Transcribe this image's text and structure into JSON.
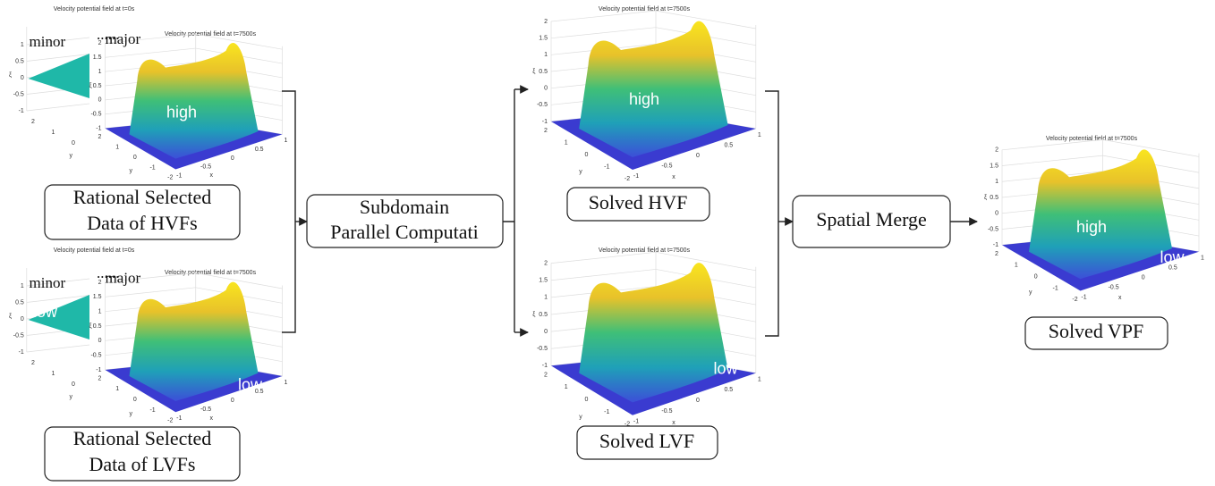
{
  "plots": [
    {
      "title": "Velocity potential field at t=0s",
      "tag": "minor",
      "surface_labels": [],
      "zticks": [
        1,
        0.5,
        0,
        -0.5,
        -1
      ],
      "yticks": [
        2,
        1,
        0
      ],
      "xticks": [],
      "z_label": "ξ",
      "x_label": null,
      "y_label": "y"
    },
    {
      "title": "Velocity potential field at t=7500s",
      "tag": "major",
      "surface_labels": [
        "high"
      ],
      "zticks": [
        2,
        1.5,
        1,
        0.5,
        0,
        -0.5,
        -1
      ],
      "yticks": [
        2,
        1,
        0,
        -1,
        -2
      ],
      "xticks": [
        -1,
        -0.5,
        0,
        0.5,
        1
      ],
      "z_label": "ξ",
      "x_label": "x",
      "y_label": "y"
    },
    {
      "title": "Velocity potential field at t=0s",
      "tag": "minor",
      "surface_labels": [
        "low"
      ],
      "zticks": [
        1,
        0.5,
        0,
        -0.5,
        -1
      ],
      "yticks": [
        2,
        1,
        0
      ],
      "xticks": [],
      "z_label": "ξ",
      "x_label": null,
      "y_label": "y"
    },
    {
      "title": "Velocity potential field at t=7500s",
      "tag": "major",
      "surface_labels": [
        "low"
      ],
      "zticks": [
        2,
        1.5,
        1,
        0.5,
        0,
        -0.5,
        -1
      ],
      "yticks": [
        2,
        1,
        0,
        -1,
        -2
      ],
      "xticks": [
        -1,
        -0.5,
        0,
        0.5,
        1
      ],
      "z_label": "ξ",
      "x_label": "x",
      "y_label": "y"
    },
    {
      "title": "Velocity potential field at t=7500s",
      "tag": null,
      "surface_labels": [
        "high"
      ],
      "zticks": [
        2,
        1.5,
        1,
        0.5,
        0,
        -0.5,
        -1
      ],
      "yticks": [
        2,
        1,
        0,
        -1,
        -2
      ],
      "xticks": [
        -1,
        -0.5,
        0,
        0.5,
        1
      ],
      "z_label": "ξ",
      "x_label": "x",
      "y_label": "y"
    },
    {
      "title": "Velocity potential field at t=7500s",
      "tag": null,
      "surface_labels": [
        "low"
      ],
      "zticks": [
        2,
        1.5,
        1,
        0.5,
        0,
        -0.5,
        -1
      ],
      "yticks": [
        2,
        1,
        0,
        -1,
        -2
      ],
      "xticks": [
        -1,
        -0.5,
        0,
        0.5,
        1
      ],
      "z_label": "ξ",
      "x_label": "x",
      "y_label": "y"
    },
    {
      "title": "Velocity potential field at t=7500s",
      "tag": null,
      "surface_labels": [
        "high",
        "low"
      ],
      "zticks": [
        2,
        1.5,
        1,
        0.5,
        0,
        -0.5,
        -1
      ],
      "yticks": [
        2,
        1,
        0,
        -1,
        -2
      ],
      "xticks": [
        -1,
        -0.5,
        0,
        0.5,
        1
      ],
      "z_label": "ξ",
      "x_label": "x",
      "y_label": "y"
    }
  ],
  "ellipses": [
    "......",
    "......"
  ],
  "boxes": {
    "hvf_data": [
      "Rational Selected",
      "Data of HVFs"
    ],
    "lvf_data": [
      "Rational Selected",
      "Data of LVFs"
    ],
    "parallel": [
      "Subdomain",
      "Parallel Computati"
    ],
    "solved_hvf": "Solved HVF",
    "solved_lvf": "Solved LVF",
    "merge": "Spatial Merge",
    "solved_vpf": "Solved VPF"
  }
}
